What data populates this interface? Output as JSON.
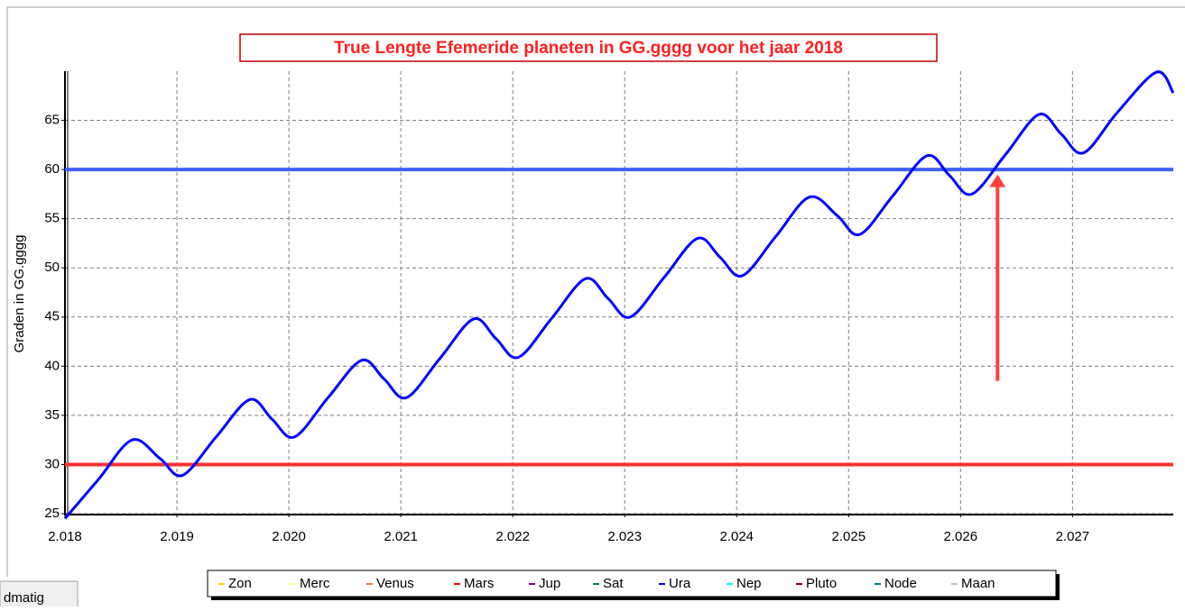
{
  "chart_data": {
    "type": "line",
    "title": "True Lengte Efemeride planeten in GG.gggg voor het jaar 2018",
    "y_label": "Graden in GG.gggg",
    "xlim": [
      2018,
      2027.9
    ],
    "ylim": [
      25,
      70
    ],
    "xticks": [
      {
        "value": 2018,
        "label": "2.018"
      },
      {
        "value": 2019,
        "label": "2.019"
      },
      {
        "value": 2020,
        "label": "2.020"
      },
      {
        "value": 2021,
        "label": "2.021"
      },
      {
        "value": 2022,
        "label": "2.022"
      },
      {
        "value": 2023,
        "label": "2.023"
      },
      {
        "value": 2024,
        "label": "2.024"
      },
      {
        "value": 2025,
        "label": "2.025"
      },
      {
        "value": 2026,
        "label": "2.026"
      },
      {
        "value": 2027,
        "label": "2.027"
      }
    ],
    "yticks": [
      25,
      30,
      35,
      40,
      45,
      50,
      55,
      60,
      65
    ],
    "grid": true,
    "x": [
      2018.0,
      2018.3,
      2018.6,
      2018.85,
      2019.05,
      2019.35,
      2019.65,
      2019.85,
      2020.05,
      2020.35,
      2020.65,
      2020.85,
      2021.05,
      2021.35,
      2021.65,
      2021.85,
      2022.05,
      2022.35,
      2022.65,
      2022.85,
      2023.05,
      2023.35,
      2023.65,
      2023.85,
      2024.05,
      2024.35,
      2024.65,
      2024.9,
      2025.1,
      2025.4,
      2025.7,
      2025.9,
      2026.1,
      2026.4,
      2026.7,
      2026.9,
      2027.1,
      2027.4,
      2027.75,
      2027.9
    ],
    "series": [
      {
        "name": "Ura",
        "color": "#0000ff",
        "values": [
          24.5,
          28.5,
          32.5,
          30.6,
          28.9,
          32.8,
          36.6,
          34.6,
          32.8,
          36.8,
          40.6,
          38.7,
          36.8,
          40.8,
          44.8,
          42.8,
          40.9,
          44.9,
          48.9,
          46.9,
          45.0,
          49.0,
          53.0,
          51.1,
          49.2,
          53.2,
          57.2,
          55.3,
          53.4,
          57.4,
          61.4,
          59.4,
          57.5,
          61.5,
          65.6,
          63.6,
          61.7,
          65.8,
          69.9,
          67.8
        ]
      }
    ],
    "reference_lines": [
      {
        "value": 60,
        "color": "#4060ff"
      },
      {
        "value": 30,
        "color": "#ff3030"
      }
    ],
    "arrow": {
      "x": 2026.33,
      "from": 38.5,
      "to": 59.5,
      "color": "#ff4040"
    },
    "legend": [
      {
        "name": "Zon",
        "color": "#ffd700"
      },
      {
        "name": "Merc",
        "color": "#ffff80"
      },
      {
        "name": "Venus",
        "color": "#ff8040"
      },
      {
        "name": "Mars",
        "color": "#ff0000"
      },
      {
        "name": "Jup",
        "color": "#800080"
      },
      {
        "name": "Sat",
        "color": "#008040"
      },
      {
        "name": "Ura",
        "color": "#0000ff"
      },
      {
        "name": "Nep",
        "color": "#00ffff"
      },
      {
        "name": "Pluto",
        "color": "#800000"
      },
      {
        "name": "Node",
        "color": "#008080"
      },
      {
        "name": "Maan",
        "color": "#c0c0c0"
      }
    ],
    "tab_label": "dmatig"
  }
}
